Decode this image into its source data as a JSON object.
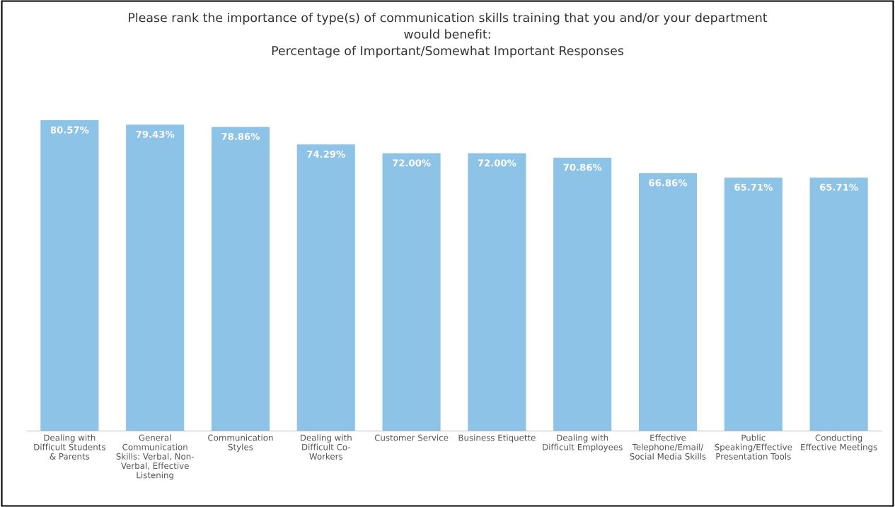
{
  "chart_data": {
    "type": "bar",
    "title": "Please rank the importance of type(s) of communication skills training that you and/or your department\nwould benefit:\nPercentage of Important/Somewhat Important Responses",
    "categories": [
      "Dealing with\nDifficult Students\n& Parents",
      "General\nCommunication\nSkills: Verbal, Non-\nVerbal, Effective\nListening",
      "Communication\nStyles",
      "Dealing with\nDifficult Co-\nWorkers",
      "Customer Service",
      "Business Etiquette",
      "Dealing with\nDifficult Employees",
      "Effective\nTelephone/Email/\nSocial Media Skills",
      "Public\nSpeaking/Effective\nPresentation Tools",
      "Conducting\nEffective Meetings"
    ],
    "values": [
      80.57,
      79.43,
      78.86,
      74.29,
      72.0,
      72.0,
      70.86,
      66.86,
      65.71,
      65.71
    ],
    "value_labels": [
      "80.57%",
      "79.43%",
      "78.86%",
      "74.29%",
      "72.00%",
      "72.00%",
      "70.86%",
      "66.86%",
      "65.71%",
      "65.71%"
    ],
    "color": "#8ec3e8",
    "grid": false,
    "legend": false
  }
}
